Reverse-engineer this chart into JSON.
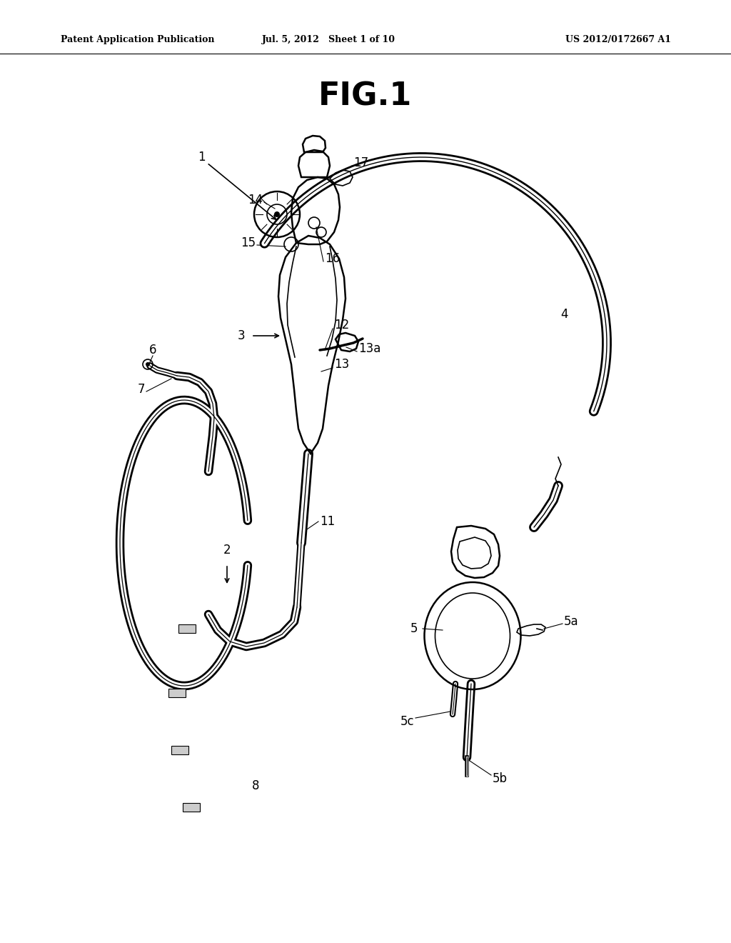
{
  "title": "FIG.1",
  "header_left": "Patent Application Publication",
  "header_center": "Jul. 5, 2012   Sheet 1 of 10",
  "header_right": "US 2012/0172667 A1",
  "background_color": "#ffffff",
  "line_color": "#000000"
}
